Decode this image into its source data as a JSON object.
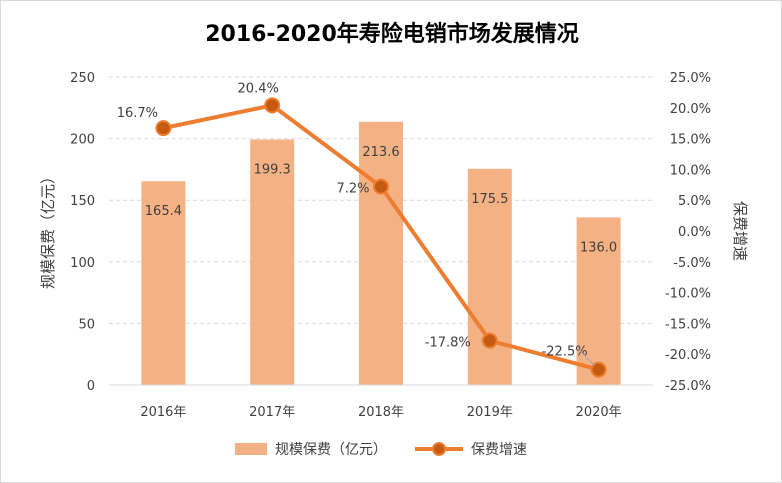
{
  "chart_data": {
    "type": "bar",
    "title": "2016-2020年寿险电销市场发展情况",
    "categories": [
      "2016年",
      "2017年",
      "2018年",
      "2019年",
      "2020年"
    ],
    "ylabel": "规模保费（亿元）",
    "y2label": "保费增速",
    "ylim": [
      0,
      250
    ],
    "y2lim": [
      -25.0,
      25.0
    ],
    "y_ticks": [
      "0",
      "50",
      "100",
      "150",
      "200",
      "250"
    ],
    "y2_ticks": [
      "25.0%",
      "20.0%",
      "15.0%",
      "10.0%",
      "5.0%",
      "0.0%",
      "-5.0%",
      "-10.0%",
      "-15.0%",
      "-20.0%",
      "-25.0%"
    ],
    "grid": true,
    "legend_position": "bottom",
    "series": [
      {
        "name": "规模保费（亿元）",
        "type": "bar",
        "axis": "left",
        "color": "#f4b183",
        "values": [
          165.4,
          199.3,
          213.6,
          175.5,
          136.0
        ],
        "labels": [
          "165.4",
          "199.3",
          "213.6",
          "175.5",
          "136.0"
        ]
      },
      {
        "name": "保费增速",
        "type": "line",
        "axis": "right",
        "color": "#ed7d31",
        "values": [
          16.7,
          20.4,
          7.2,
          -17.8,
          -22.5
        ],
        "labels": [
          "16.7%",
          "20.4%",
          "7.2%",
          "-17.8%",
          "-22.5%"
        ]
      }
    ]
  }
}
